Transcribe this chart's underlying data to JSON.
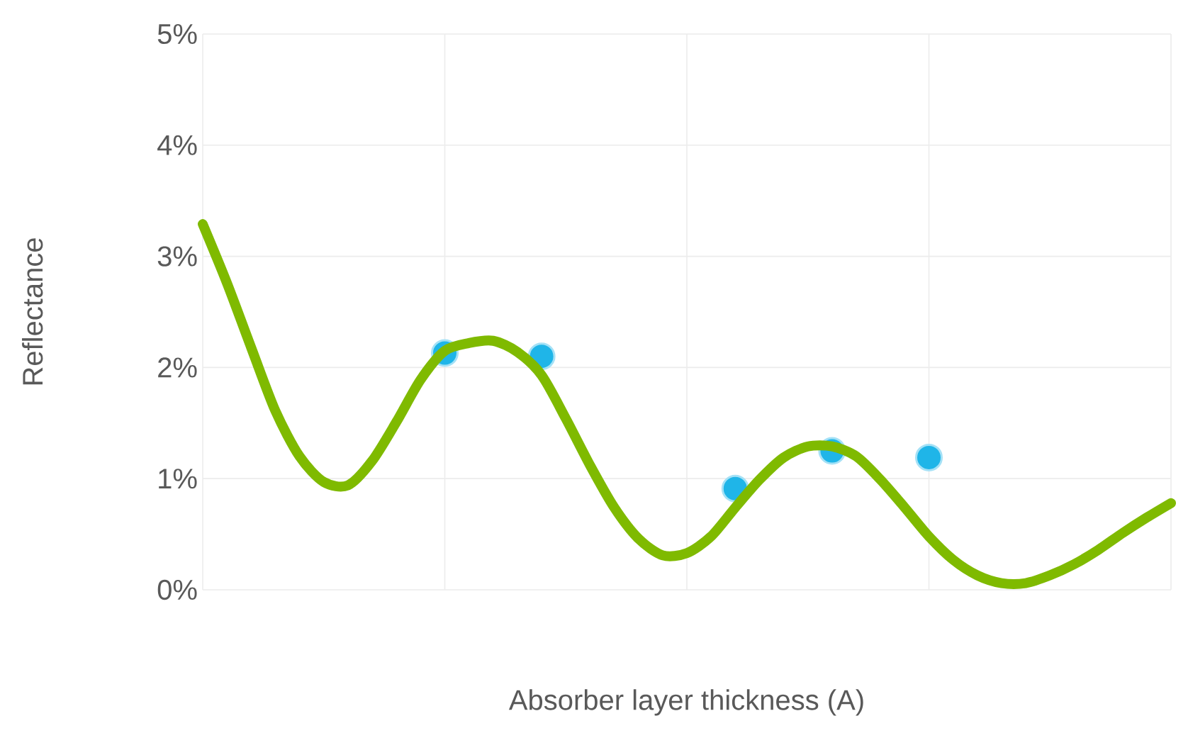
{
  "chart_data": {
    "type": "line",
    "xlabel": "Absorber layer thickness (A)",
    "ylabel": "Reflectance",
    "categories": [
      null,
      null,
      null,
      null,
      null,
      null,
      null,
      null,
      null,
      null,
      null,
      null,
      null,
      null,
      null,
      null,
      null,
      null,
      null,
      null,
      null,
      null,
      null,
      null,
      null,
      null,
      null,
      null,
      null,
      null,
      null,
      null,
      null,
      null,
      null,
      null,
      null,
      null,
      null,
      null,
      null
    ],
    "series": [
      {
        "color": "#7fba00",
        "marker": "none",
        "values": [
          3.29,
          2.76,
          2.18,
          1.61,
          1.2,
          0.97,
          0.94,
          1.16,
          1.51,
          1.89,
          2.15,
          2.22,
          2.24,
          2.14,
          1.93,
          1.54,
          1.12,
          0.74,
          0.46,
          0.31,
          0.33,
          0.48,
          0.74,
          0.99,
          1.19,
          1.29,
          1.29,
          1.2,
          0.99,
          0.74,
          0.48,
          0.27,
          0.13,
          0.06,
          0.06,
          0.13,
          0.23,
          0.36,
          0.51,
          0.65,
          0.78
        ]
      },
      {
        "type": "scatter",
        "color": "#1fb5e8",
        "marker": "circle",
        "values": [
          null,
          null,
          null,
          null,
          null,
          null,
          null,
          null,
          null,
          null,
          2.13,
          null,
          null,
          null,
          2.1,
          null,
          null,
          null,
          null,
          null,
          null,
          null,
          0.91,
          null,
          null,
          null,
          1.25,
          null,
          null,
          null,
          1.19,
          null,
          null,
          null,
          null,
          null,
          null,
          null,
          null,
          null,
          null
        ]
      }
    ],
    "ylim": [
      0,
      5
    ],
    "yticks": [
      {
        "value": 0,
        "label": "0%"
      },
      {
        "value": 1,
        "label": "1%"
      },
      {
        "value": 2,
        "label": "2%"
      },
      {
        "value": 3,
        "label": "3%"
      },
      {
        "value": 4,
        "label": "4%"
      },
      {
        "value": 5,
        "label": "5%"
      }
    ],
    "grid": true,
    "tick_labels": "y"
  }
}
